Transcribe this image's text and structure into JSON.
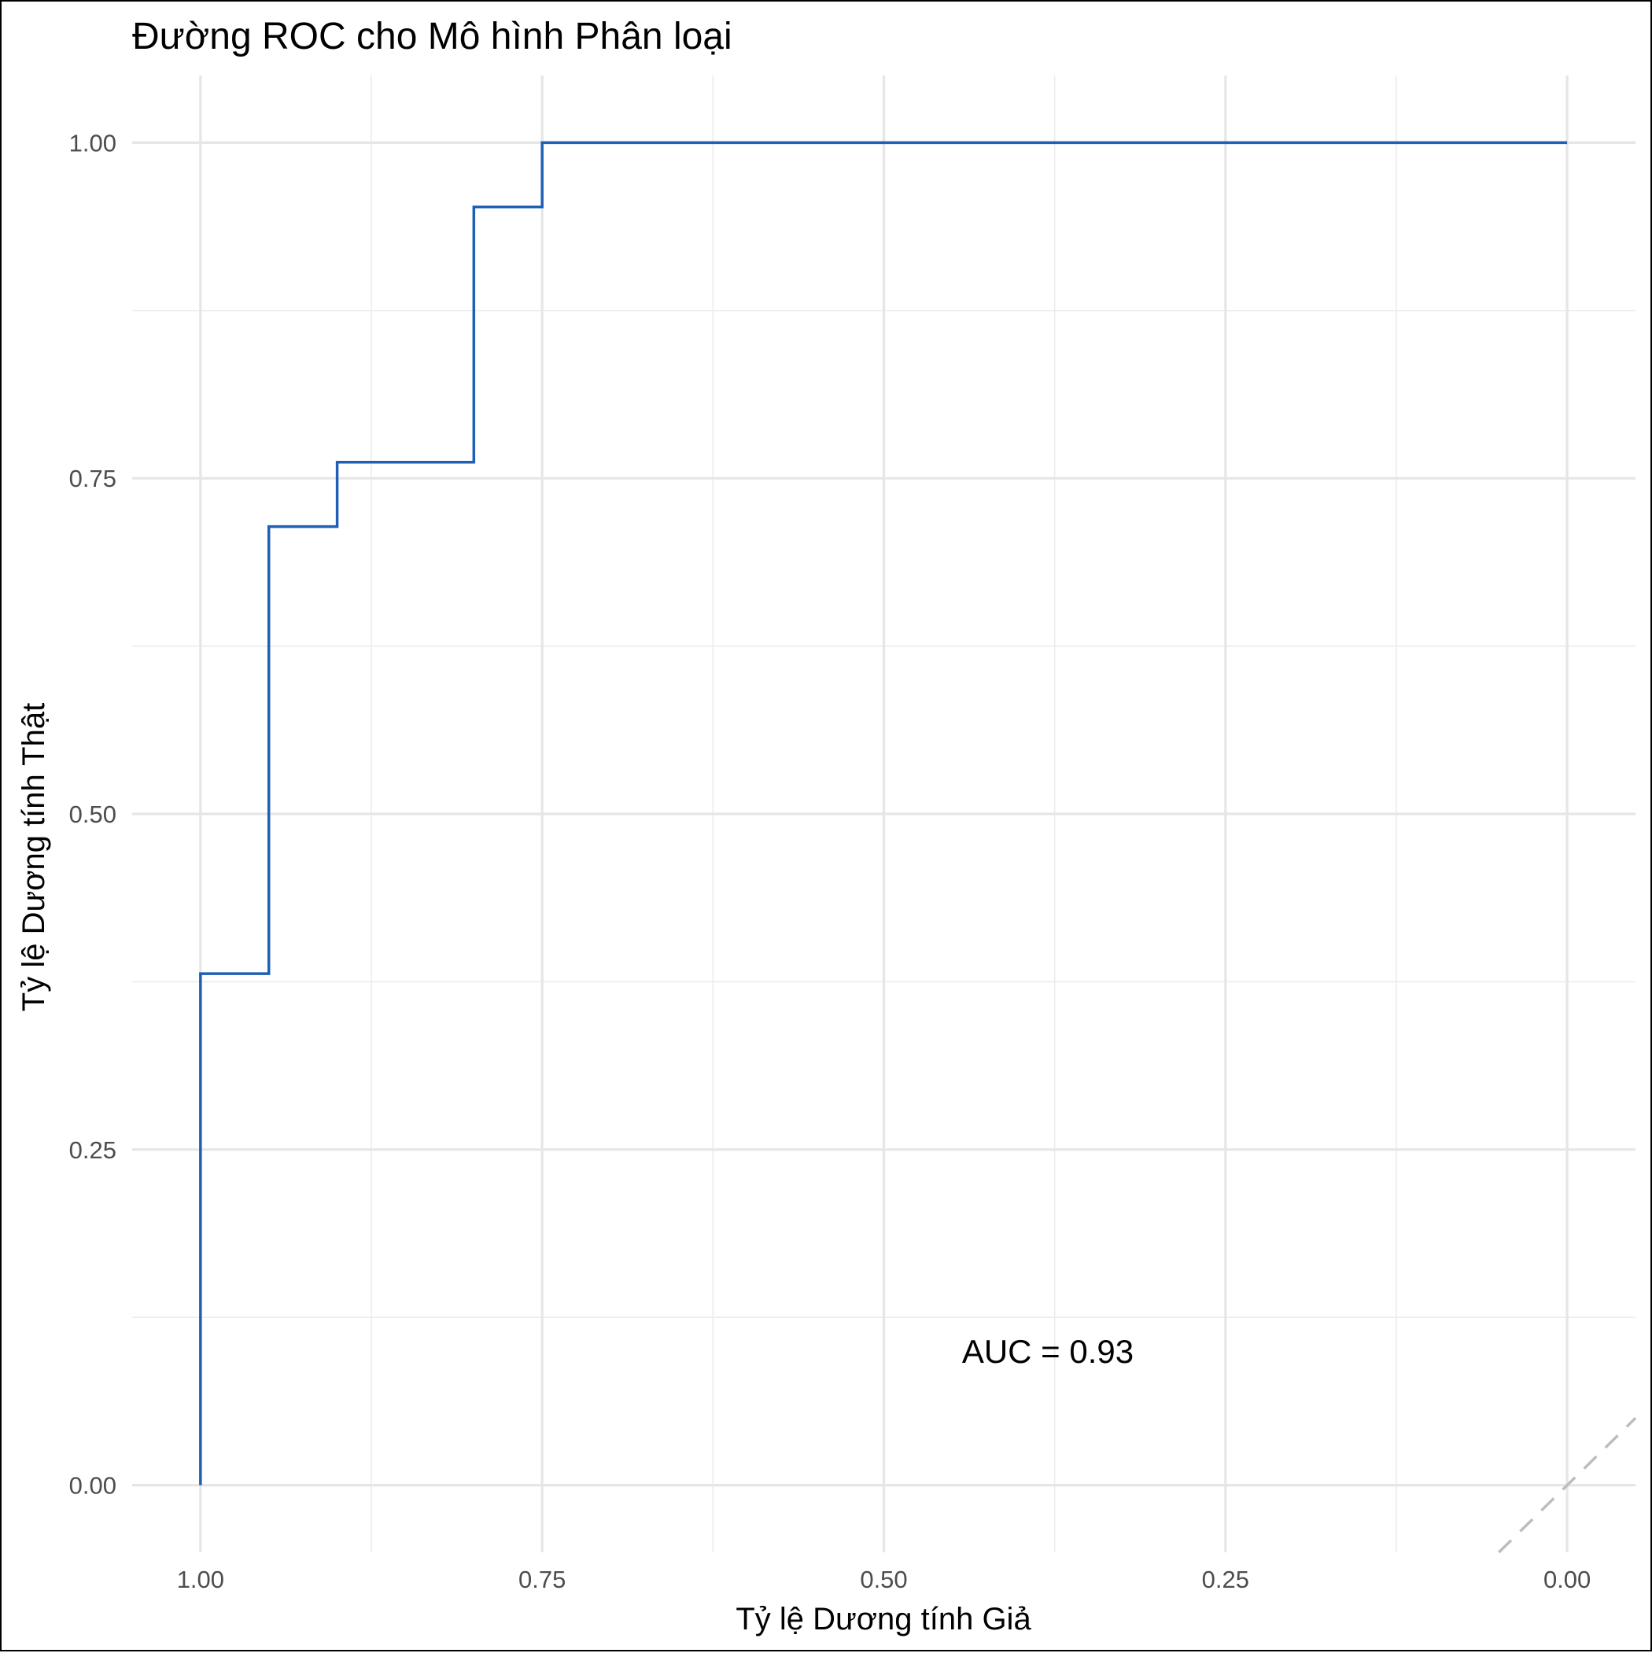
{
  "chart_data": {
    "type": "line",
    "title": "Đường ROC cho Mô hình Phân loại",
    "xlabel": "Tỷ lệ Dương tính Giả",
    "ylabel": "Tỷ lệ Dương tính Thật",
    "x_reversed": true,
    "xlim": [
      1.05,
      -0.05
    ],
    "ylim": [
      -0.05,
      1.05
    ],
    "x_ticks": [
      1.0,
      0.75,
      0.5,
      0.25,
      0.0
    ],
    "x_tick_labels": [
      "1.00",
      "0.75",
      "0.50",
      "0.25",
      "0.00"
    ],
    "y_ticks": [
      0.0,
      0.25,
      0.5,
      0.75,
      1.0
    ],
    "y_tick_labels": [
      "0.00",
      "0.25",
      "0.50",
      "0.75",
      "1.00"
    ],
    "grid": true,
    "series": [
      {
        "style": "step",
        "color": "#1f5fb4",
        "x": [
          1.0,
          1.0,
          0.95,
          0.95,
          0.9,
          0.9,
          0.8,
          0.8,
          0.75,
          0.75,
          0.0
        ],
        "y": [
          0.0,
          0.381,
          0.381,
          0.714,
          0.714,
          0.762,
          0.762,
          0.952,
          0.952,
          1.0,
          1.0
        ]
      }
    ],
    "reference_line": {
      "style": "dashed",
      "color": "#bdbdbd",
      "x": [
        0.05,
        -0.05
      ],
      "y": [
        -0.05,
        0.05
      ]
    },
    "annotations": [
      {
        "text": "AUC = 0.93",
        "x": 0.38,
        "y": 0.1
      }
    ]
  }
}
